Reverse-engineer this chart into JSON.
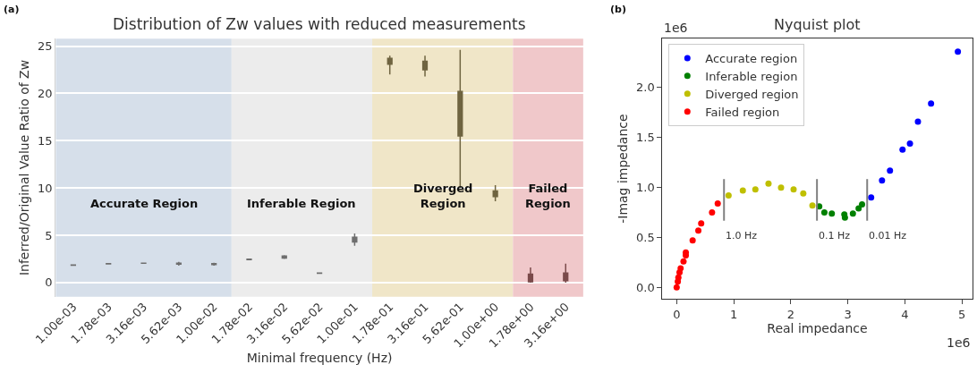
{
  "chart_data": [
    {
      "type": "box",
      "title": "Distribution of Zw values with reduced measurements",
      "xlabel": "Minimal frequency (Hz)",
      "ylabel": "Inferred/Original Value Ratio of Zw",
      "categories": [
        "1.00e-03",
        "1.78e-03",
        "3.16e-03",
        "5.62e-03",
        "1.00e-02",
        "1.78e-02",
        "3.16e-02",
        "5.62e-02",
        "1.00e-01",
        "1.78e-01",
        "3.16e-01",
        "5.62e-01",
        "1.00e+00",
        "1.78e+00",
        "3.16e+00"
      ],
      "boxes": [
        {
          "low": 1.8,
          "q1": 1.83,
          "median": 1.85,
          "q3": 1.87,
          "high": 1.9
        },
        {
          "low": 1.97,
          "q1": 1.99,
          "median": 2.0,
          "q3": 2.01,
          "high": 2.03
        },
        {
          "low": 2.02,
          "q1": 2.04,
          "median": 2.05,
          "q3": 2.06,
          "high": 2.08
        },
        {
          "low": 1.8,
          "q1": 1.95,
          "median": 2.0,
          "q3": 2.05,
          "high": 2.2
        },
        {
          "low": 1.8,
          "q1": 1.9,
          "median": 1.95,
          "q3": 2.0,
          "high": 2.1
        },
        {
          "low": 2.4,
          "q1": 2.43,
          "median": 2.45,
          "q3": 2.47,
          "high": 2.5
        },
        {
          "low": 2.5,
          "q1": 2.6,
          "median": 2.7,
          "q3": 2.8,
          "high": 2.9
        },
        {
          "low": 0.95,
          "q1": 0.98,
          "median": 1.0,
          "q3": 1.02,
          "high": 1.05
        },
        {
          "low": 3.9,
          "q1": 4.3,
          "median": 4.5,
          "q3": 4.8,
          "high": 5.2
        },
        {
          "low": 22.0,
          "q1": 23.1,
          "median": 23.4,
          "q3": 23.7,
          "high": 24.0
        },
        {
          "low": 21.8,
          "q1": 22.5,
          "median": 23.0,
          "q3": 23.4,
          "high": 24.0
        },
        {
          "low": 10.0,
          "q1": 15.5,
          "median": 18.0,
          "q3": 20.2,
          "high": 24.6
        },
        {
          "low": 8.6,
          "q1": 9.1,
          "median": 9.4,
          "q3": 9.7,
          "high": 10.3
        },
        {
          "low": 0.0,
          "q1": 0.1,
          "median": 0.5,
          "q3": 0.9,
          "high": 1.6
        },
        {
          "low": 0.0,
          "q1": 0.2,
          "median": 0.5,
          "q3": 1.0,
          "high": 2.0
        }
      ],
      "colors": [
        "#6e6e6e",
        "#6e6e6e",
        "#6e6e6e",
        "#6e6e6e",
        "#6e6e6e",
        "#6e6e6e",
        "#6e6e6e",
        "#6e6e6e",
        "#6e6e6e",
        "#6f6440",
        "#6f6440",
        "#6f6440",
        "#6f6440",
        "#7a4a4a",
        "#7a4a4a"
      ],
      "ylim": [
        -1.5,
        25.8
      ],
      "yticks": [
        0,
        5,
        10,
        15,
        20,
        25
      ],
      "grid": "y",
      "legend": false,
      "bands": [
        {
          "axis": "x",
          "from": "1.00e-03",
          "to": "1.00e-02",
          "label": "Accurate Region",
          "color": "#d6dfea"
        },
        {
          "axis": "x",
          "from": "1.78e-02",
          "to": "1.00e-01",
          "label": "Inferable Region",
          "color": "#ececec"
        },
        {
          "axis": "x",
          "from": "1.78e-01",
          "to": "1.00e+00",
          "label": "Diverged\nRegion",
          "color": "#f0e6c8"
        },
        {
          "axis": "x",
          "from": "1.78e+00",
          "to": "3.16e+00",
          "label": "Failed\nRegion",
          "color": "#f0c8ca"
        }
      ],
      "annotations": [
        "(a)"
      ]
    },
    {
      "type": "scatter",
      "title": "Nyquist plot",
      "xlabel": "Real impedance",
      "ylabel": "-Imag impedance",
      "series": [
        {
          "name": "Accurate region",
          "color": "#0000ff",
          "x": [
            3.41,
            3.6,
            3.74,
            3.96,
            4.09,
            4.23,
            4.46,
            4.93
          ],
          "values": [
            0.9,
            1.07,
            1.17,
            1.38,
            1.44,
            1.66,
            1.84,
            2.36
          ]
        },
        {
          "name": "Inferable region",
          "color": "#008000",
          "x": [
            2.5,
            2.59,
            2.72,
            2.94,
            2.95,
            3.09,
            3.19,
            3.25
          ],
          "values": [
            0.81,
            0.75,
            0.74,
            0.73,
            0.7,
            0.74,
            0.79,
            0.83
          ]
        },
        {
          "name": "Diverged region",
          "color": "#bfbf00",
          "x": [
            0.91,
            1.16,
            1.38,
            1.61,
            1.83,
            2.05,
            2.22,
            2.38
          ],
          "values": [
            0.92,
            0.97,
            0.98,
            1.04,
            1.0,
            0.98,
            0.94,
            0.82
          ]
        },
        {
          "name": "Failed region",
          "color": "#ff0000",
          "x": [
            0.72,
            0.62,
            0.43,
            0.38,
            0.28,
            0.16,
            0.16,
            0.12,
            0.07,
            0.05,
            0.03,
            0.02,
            0.0
          ],
          "values": [
            0.84,
            0.75,
            0.64,
            0.57,
            0.47,
            0.35,
            0.32,
            0.26,
            0.19,
            0.15,
            0.1,
            0.06,
            0.0
          ]
        }
      ],
      "xlim": [
        -0.25,
        5.18
      ],
      "xticks": [
        0,
        1,
        2,
        3,
        4,
        5
      ],
      "ylim": [
        -0.113,
        2.49
      ],
      "yticks": [
        {
          "value": 0,
          "label": "0.0"
        },
        {
          "value": 0.5,
          "label": "0.5"
        },
        {
          "value": 1,
          "label": "1.0"
        },
        {
          "value": 1.5,
          "label": "1.5"
        },
        {
          "value": 2,
          "label": "2.0"
        }
      ],
      "grid": false,
      "legend": "top left",
      "marker": "circle",
      "ref_lines": [
        {
          "axis": "x",
          "value": 0.83,
          "label": "1.0 Hz",
          "color": "#808080"
        },
        {
          "axis": "x",
          "value": 2.46,
          "label": "0.1 Hz",
          "color": "#808080"
        },
        {
          "axis": "x",
          "value": 3.34,
          "label": "0.01 Hz",
          "color": "#808080"
        }
      ],
      "annotations": [
        "(b)",
        "1e6",
        "1e6"
      ]
    }
  ]
}
